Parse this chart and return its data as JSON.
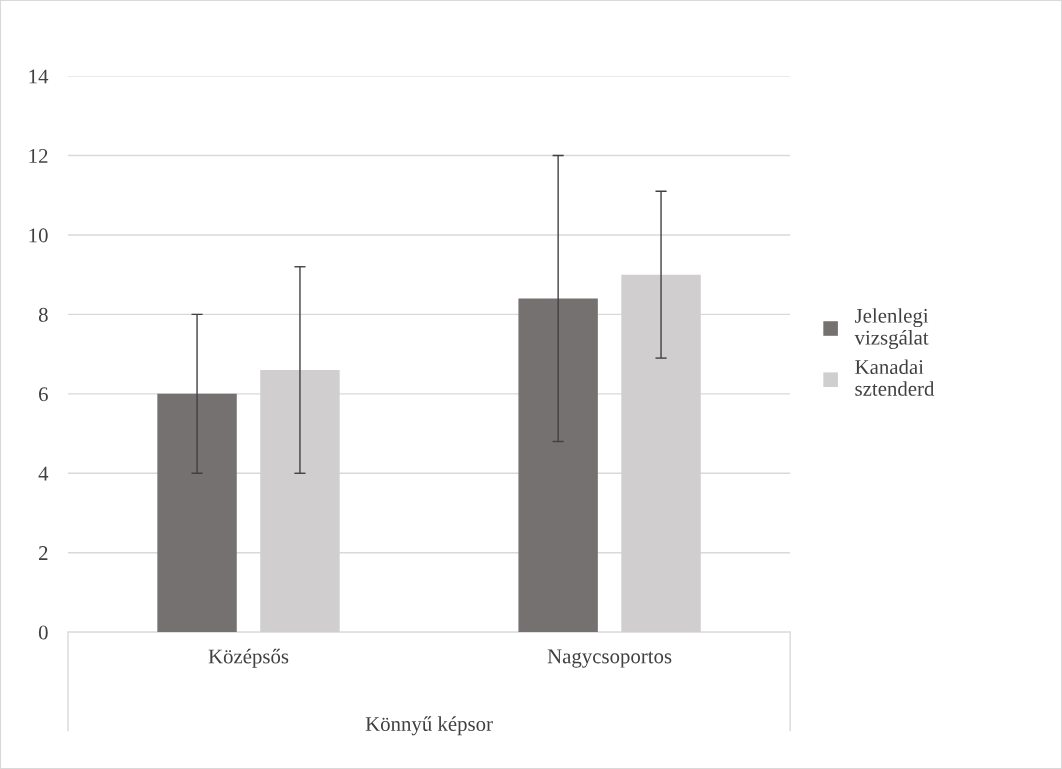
{
  "chart_data": {
    "type": "bar",
    "categories": [
      "Középsős",
      "Nagycsoportos"
    ],
    "xlabel": "Könnyű képsor",
    "series": [
      {
        "name": "Jelenlegi\nvizsgálat",
        "color": "#767171",
        "values": [
          6.0,
          8.4
        ],
        "errors": [
          2.0,
          3.6
        ]
      },
      {
        "name": "Kanadai\nsztenderd",
        "color": "#d0cece",
        "values": [
          6.6,
          9.0
        ],
        "errors": [
          2.6,
          2.1
        ]
      }
    ],
    "ylim": [
      0,
      14
    ],
    "yticks": [
      0,
      2,
      4,
      6,
      8,
      10,
      12,
      14
    ],
    "grid": "y",
    "legend": "right"
  }
}
